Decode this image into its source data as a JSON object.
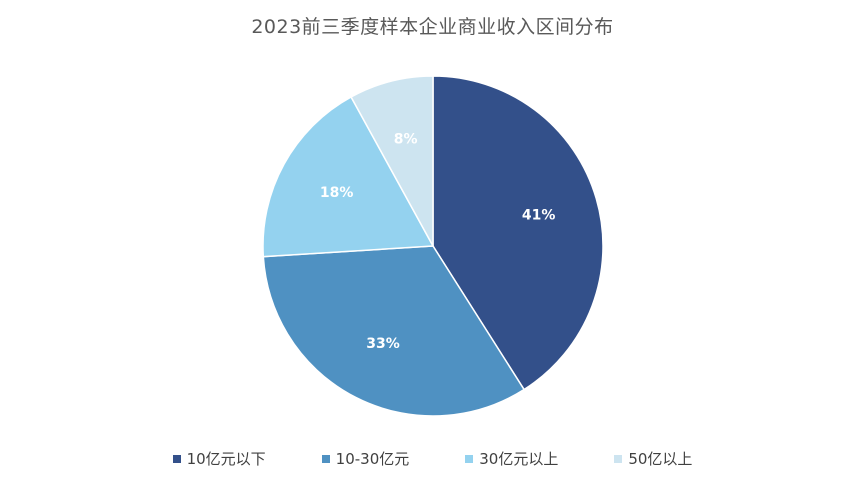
{
  "chart_data": {
    "type": "pie",
    "title": "2023前三季度样本企业商业收入区间分布",
    "categories": [
      "10亿元以下",
      "10-30亿元",
      "30亿元以上",
      "50亿以上"
    ],
    "values": [
      41,
      33,
      18,
      8
    ],
    "labels": [
      "41%",
      "33%",
      "18%",
      "8%"
    ],
    "colors": [
      "#33508a",
      "#4f91c2",
      "#94d2ef",
      "#cde4f0"
    ],
    "label_colors": [
      "#ffffff",
      "#ffffff",
      "#ffffff",
      "#ffffff"
    ],
    "legend_position": "bottom",
    "start_angle": "12 o'clock, clockwise"
  }
}
